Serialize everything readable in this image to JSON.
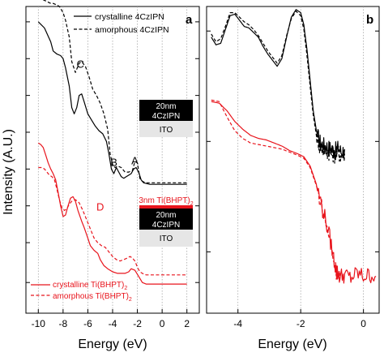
{
  "shared_ylabel": "Intensity (A.U.)",
  "chart_data": [
    {
      "panel_label": "a",
      "type": "line",
      "xlabel": "Energy (eV)",
      "ylabel": "Intensity (A.U.)",
      "xlim": [
        -11,
        3
      ],
      "xticks": [
        -10,
        -8,
        -6,
        -4,
        -2,
        0,
        2
      ],
      "xtick_labels": [
        "-10",
        "-8",
        "-6",
        "-4",
        "-2",
        "0",
        "2"
      ],
      "ylim": [
        0,
        10
      ],
      "yticks": [
        1.0,
        2.3,
        3.5,
        4.7,
        5.9,
        7.1,
        8.3,
        9.5
      ],
      "grid_x": true,
      "legend_top": {
        "placement": "top-right",
        "entries": [
          {
            "label": "crystalline 4CzIPN",
            "style": "solid",
            "color": "#000000"
          },
          {
            "label": "amorphous 4CzIPN",
            "style": "dashed",
            "color": "#000000"
          }
        ]
      },
      "legend_bottom": {
        "placement": "bottom-left",
        "entries": [
          {
            "label": "crystalline Ti(BHPT)",
            "subscript": "2",
            "style": "solid",
            "color": "#e8141c"
          },
          {
            "label": "amorphous Ti(BHPT)",
            "subscript": "2",
            "style": "dashed",
            "color": "#e8141c"
          }
        ]
      },
      "annotations": [
        {
          "text": "A",
          "x": -2.2,
          "y": 4.85,
          "color": "#000000"
        },
        {
          "text": "B",
          "x": -3.9,
          "y": 4.8,
          "color": "#000000"
        },
        {
          "text": "C",
          "x": -6.6,
          "y": 8.0,
          "color": "#000000"
        },
        {
          "text": "D",
          "x": -5.0,
          "y": 3.35,
          "color": "#e8141c"
        }
      ],
      "device_stack_1": {
        "layers": [
          {
            "label": "20nm",
            "label2": "4CzIPN",
            "fill": "#000000",
            "text_color": "#ffffff"
          },
          {
            "label": "ITO",
            "fill": "#e6e6e6",
            "text_color": "#000000"
          }
        ]
      },
      "device_stack_2": {
        "layers": [
          {
            "label": "3nm Ti(BHPT)",
            "subscript": "2",
            "fill": "#e8141c",
            "text_color": "#e8141c"
          },
          {
            "label": "20nm",
            "label2": "4CzIPN",
            "fill": "#000000",
            "text_color": "#ffffff"
          },
          {
            "label": "ITO",
            "fill": "#e6e6e6",
            "text_color": "#000000"
          }
        ]
      },
      "series": [
        {
          "name": "crystalline 4CzIPN",
          "color": "#000000",
          "style": "solid",
          "x": [
            -10.0,
            -9.5,
            -9.0,
            -8.8,
            -8.5,
            -8.2,
            -8.0,
            -7.8,
            -7.5,
            -7.3,
            -7.1,
            -6.9,
            -6.7,
            -6.5,
            -6.3,
            -6.0,
            -5.7,
            -5.4,
            -5.1,
            -4.8,
            -4.5,
            -4.3,
            -4.1,
            -3.9,
            -3.7,
            -3.5,
            -3.3,
            -3.1,
            -2.9,
            -2.7,
            -2.5,
            -2.3,
            -2.1,
            -1.9,
            -1.7,
            -1.5,
            -1.0,
            -0.5,
            0.0,
            0.5,
            1.0,
            1.5,
            2.0
          ],
          "y": [
            9.5,
            9.3,
            8.85,
            8.55,
            8.45,
            8.4,
            8.3,
            8.0,
            7.4,
            6.7,
            6.5,
            6.7,
            7.1,
            7.15,
            6.9,
            6.5,
            6.3,
            6.1,
            5.95,
            5.85,
            5.6,
            5.2,
            4.7,
            4.55,
            4.75,
            4.6,
            4.45,
            4.4,
            4.45,
            4.5,
            4.55,
            4.7,
            4.75,
            4.6,
            4.35,
            4.25,
            4.2,
            4.2,
            4.2,
            4.2,
            4.2,
            4.2,
            4.2
          ]
        },
        {
          "name": "amorphous 4CzIPN",
          "color": "#000000",
          "style": "dashed",
          "x": [
            -10.0,
            -9.5,
            -9.0,
            -8.8,
            -8.5,
            -8.3,
            -8.0,
            -7.8,
            -7.5,
            -7.3,
            -7.0,
            -6.7,
            -6.5,
            -6.2,
            -5.9,
            -5.6,
            -5.3,
            -5.0,
            -4.7,
            -4.4,
            -4.2,
            -4.0,
            -3.8,
            -3.6,
            -3.3,
            -3.0,
            -2.7,
            -2.4,
            -2.2,
            -2.0,
            -1.8,
            -1.6,
            -1.3,
            -1.0,
            -0.5,
            0.0,
            0.5,
            1.0,
            1.5,
            2.0
          ],
          "y": [
            10.3,
            10.2,
            10.1,
            10.1,
            10.05,
            10.0,
            9.8,
            9.55,
            9.0,
            8.2,
            7.85,
            8.15,
            8.2,
            8.05,
            7.7,
            7.3,
            7.1,
            6.85,
            6.5,
            6.0,
            5.2,
            4.85,
            4.75,
            4.8,
            4.75,
            4.6,
            4.6,
            4.65,
            4.95,
            4.9,
            4.4,
            4.3,
            4.25,
            4.25,
            4.25,
            4.25,
            4.25,
            4.25,
            4.25,
            4.25
          ]
        },
        {
          "name": "crystalline Ti(BHPT)2",
          "color": "#e8141c",
          "style": "solid",
          "x": [
            -10.0,
            -9.8,
            -9.6,
            -9.4,
            -9.2,
            -9.0,
            -8.8,
            -8.6,
            -8.4,
            -8.2,
            -8.0,
            -7.8,
            -7.6,
            -7.4,
            -7.2,
            -7.0,
            -6.8,
            -6.5,
            -6.3,
            -6.0,
            -5.8,
            -5.5,
            -5.2,
            -5.0,
            -4.7,
            -4.4,
            -4.0,
            -3.6,
            -3.3,
            -3.0,
            -2.7,
            -2.5,
            -2.2,
            -1.9,
            -1.6,
            -1.3,
            -1.0,
            -0.5,
            0.0,
            0.5,
            1.0,
            1.5,
            2.0
          ],
          "y": [
            5.55,
            5.5,
            5.4,
            5.15,
            4.9,
            4.7,
            4.55,
            4.35,
            3.95,
            3.5,
            3.15,
            3.2,
            3.5,
            3.75,
            3.8,
            3.65,
            3.35,
            3.0,
            2.8,
            2.45,
            2.2,
            2.05,
            1.95,
            1.75,
            1.55,
            1.45,
            1.35,
            1.3,
            1.3,
            1.3,
            1.35,
            1.45,
            1.4,
            1.2,
            1.0,
            0.95,
            0.95,
            0.95,
            0.95,
            0.95,
            0.95,
            0.95,
            0.95
          ]
        },
        {
          "name": "amorphous Ti(BHPT)2",
          "color": "#e8141c",
          "style": "dashed",
          "x": [
            -10.0,
            -9.7,
            -9.5,
            -9.3,
            -9.1,
            -8.9,
            -8.7,
            -8.5,
            -8.3,
            -8.1,
            -7.9,
            -7.7,
            -7.5,
            -7.3,
            -7.0,
            -6.7,
            -6.4,
            -6.1,
            -5.8,
            -5.5,
            -5.2,
            -4.9,
            -4.6,
            -4.3,
            -4.0,
            -3.7,
            -3.4,
            -3.1,
            -2.8,
            -2.6,
            -2.4,
            -2.2,
            -2.0,
            -1.8,
            -1.6,
            -1.3,
            -1.0,
            -0.5,
            0.0,
            0.5,
            1.0,
            1.5,
            2.0
          ],
          "y": [
            4.75,
            4.75,
            4.7,
            4.6,
            4.5,
            4.45,
            4.35,
            4.05,
            3.7,
            3.45,
            3.35,
            3.4,
            3.55,
            3.65,
            3.7,
            3.6,
            3.35,
            3.05,
            2.75,
            2.45,
            2.3,
            2.2,
            2.15,
            2.0,
            1.85,
            1.75,
            1.7,
            1.75,
            1.8,
            1.85,
            1.8,
            1.7,
            1.5,
            1.35,
            1.3,
            1.25,
            1.25,
            1.25,
            1.25,
            1.25,
            1.25,
            1.25,
            1.25
          ]
        }
      ]
    },
    {
      "panel_label": "b",
      "type": "line",
      "xlabel": "Energy (eV)",
      "xlim": [
        -5,
        0.5
      ],
      "xticks": [
        -4,
        -2,
        0
      ],
      "xtick_labels": [
        "-4",
        "-2",
        "0"
      ],
      "ylim": [
        0,
        10
      ],
      "yticks": [
        2.0,
        5.6,
        9.2
      ],
      "grid_x": true,
      "series": [
        {
          "name": "crystalline 4CzIPN",
          "color": "#000000",
          "style": "solid",
          "x": [
            -4.85,
            -4.7,
            -4.55,
            -4.4,
            -4.25,
            -4.1,
            -3.95,
            -3.8,
            -3.65,
            -3.5,
            -3.35,
            -3.2,
            -3.05,
            -2.9,
            -2.75,
            -2.6,
            -2.45,
            -2.3,
            -2.15,
            -2.0,
            -1.9,
            -1.8,
            -1.7,
            -1.6,
            -1.5,
            -1.4,
            -1.3,
            -1.2,
            -1.1,
            -1.0,
            -0.9,
            -0.8,
            -0.7,
            -0.6
          ],
          "y": [
            9.0,
            8.75,
            8.8,
            9.25,
            9.7,
            9.75,
            9.55,
            9.35,
            9.3,
            9.15,
            9.0,
            8.7,
            8.45,
            8.25,
            8.05,
            8.3,
            9.0,
            9.65,
            9.9,
            9.8,
            9.4,
            8.6,
            7.6,
            6.6,
            5.95,
            5.6,
            5.5,
            5.45,
            5.4,
            5.35,
            5.3,
            5.4,
            5.25,
            5.35
          ]
        },
        {
          "name": "amorphous 4CzIPN",
          "color": "#000000",
          "style": "dashed",
          "x": [
            -4.85,
            -4.7,
            -4.55,
            -4.4,
            -4.25,
            -4.1,
            -3.95,
            -3.8,
            -3.65,
            -3.5,
            -3.35,
            -3.2,
            -3.05,
            -2.9,
            -2.75,
            -2.6,
            -2.45,
            -2.3,
            -2.15,
            -2.0,
            -1.9,
            -1.8,
            -1.7,
            -1.6,
            -1.5,
            -1.4,
            -1.3,
            -1.2,
            -1.1,
            -1.0,
            -0.9,
            -0.8,
            -0.7,
            -0.6
          ],
          "y": [
            9.1,
            8.85,
            8.95,
            9.35,
            9.8,
            9.8,
            9.65,
            9.5,
            9.4,
            9.25,
            9.05,
            8.8,
            8.55,
            8.35,
            8.15,
            8.4,
            9.05,
            9.6,
            9.85,
            9.7,
            9.25,
            8.4,
            7.4,
            6.45,
            5.8,
            5.45,
            5.35,
            5.3,
            5.25,
            5.2,
            5.15,
            5.25,
            5.1,
            5.2
          ]
        },
        {
          "name": "crystalline Ti(BHPT)2",
          "color": "#e8141c",
          "style": "solid",
          "x": [
            -4.85,
            -4.6,
            -4.35,
            -4.1,
            -3.85,
            -3.6,
            -3.35,
            -3.1,
            -2.85,
            -2.6,
            -2.35,
            -2.1,
            -1.9,
            -1.7,
            -1.5,
            -1.3,
            -1.1,
            -0.95,
            -0.85,
            -0.75,
            -0.6,
            -0.4,
            -0.2,
            0.0,
            0.2,
            0.4
          ],
          "y": [
            6.9,
            6.85,
            6.6,
            6.25,
            6.0,
            5.8,
            5.7,
            5.65,
            5.55,
            5.45,
            5.3,
            5.2,
            5.1,
            4.8,
            4.2,
            3.4,
            2.6,
            1.8,
            1.35,
            1.2,
            1.25,
            1.15,
            1.3,
            1.2,
            1.25,
            1.2
          ]
        },
        {
          "name": "amorphous Ti(BHPT)2",
          "color": "#e8141c",
          "style": "dashed",
          "x": [
            -4.85,
            -4.6,
            -4.35,
            -4.1,
            -3.85,
            -3.6,
            -3.35,
            -3.1,
            -2.85,
            -2.6,
            -2.35,
            -2.1,
            -1.9,
            -1.7,
            -1.5,
            -1.3,
            -1.1,
            -0.95,
            -0.85,
            -0.75
          ],
          "y": [
            6.95,
            6.9,
            6.4,
            5.95,
            5.7,
            5.55,
            5.5,
            5.45,
            5.4,
            5.35,
            5.25,
            5.15,
            5.05,
            4.75,
            4.15,
            3.35,
            2.55,
            1.75,
            1.3,
            1.2
          ]
        }
      ]
    }
  ]
}
